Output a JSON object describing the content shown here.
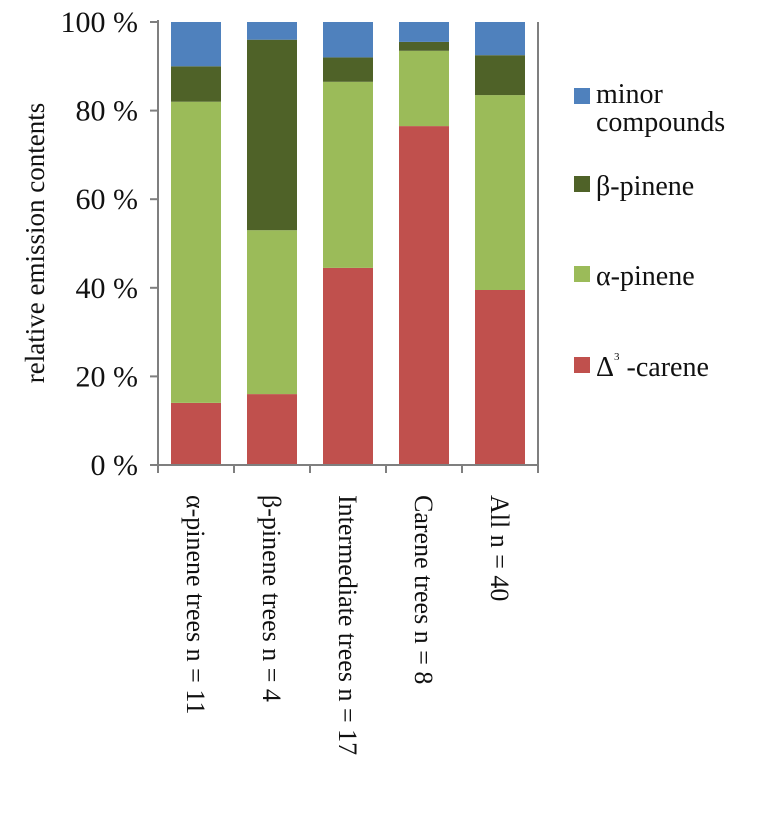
{
  "chart_data": {
    "type": "bar",
    "stacked": true,
    "ylabel": "relative emission contents",
    "ylim": [
      0,
      100
    ],
    "yticks": [
      "0 %",
      "20 %",
      "40 %",
      "60 %",
      "80 %",
      "100 %"
    ],
    "categories": [
      "α-pinene trees n = 11",
      "β-pinene trees n = 4",
      "Intermediate trees n = 17",
      "Carene trees n = 8",
      "All n = 40"
    ],
    "series": [
      {
        "name": "Δ3 -carene",
        "label_main": "Δ",
        "label_sup": "3",
        "label_rest": " -carene",
        "color": "#c0504d",
        "values": [
          14,
          16,
          44.5,
          76.5,
          39.5
        ]
      },
      {
        "name": "α-pinene",
        "color": "#9bbb59",
        "values": [
          68,
          37,
          42,
          17,
          44
        ]
      },
      {
        "name": "β-pinene",
        "color": "#4f6228",
        "values": [
          8,
          43,
          5.5,
          2,
          9
        ]
      },
      {
        "name": "minor compounds",
        "label_lines": [
          "minor",
          "compounds"
        ],
        "color": "#4f81bd",
        "values": [
          10,
          4,
          8,
          4.5,
          7.5
        ]
      }
    ],
    "legend_position": "right",
    "grid": false
  }
}
